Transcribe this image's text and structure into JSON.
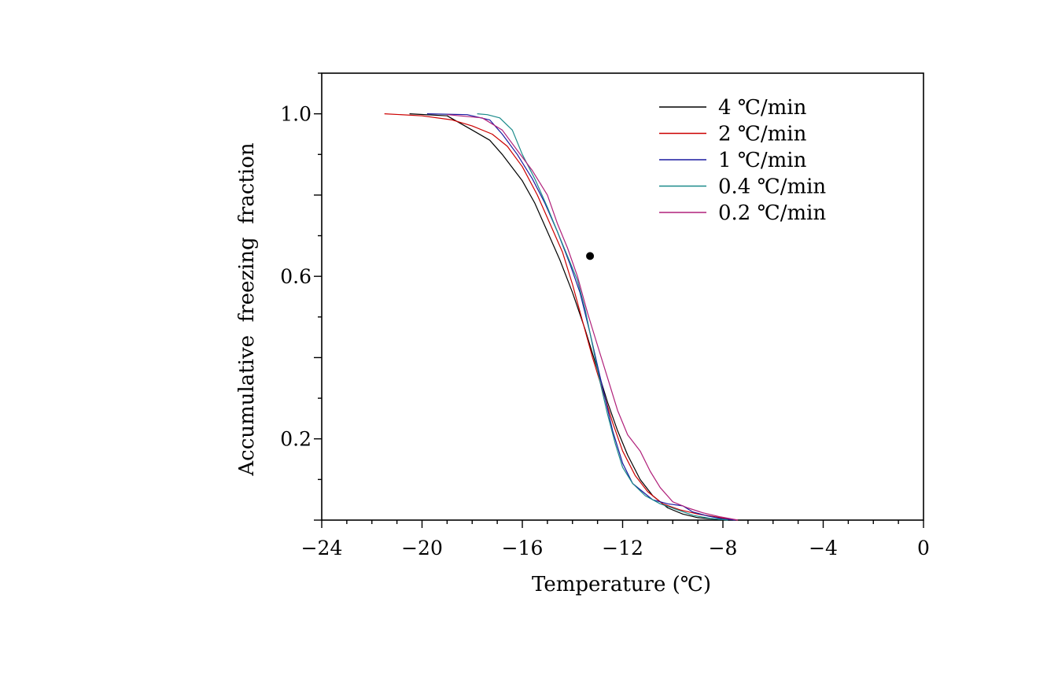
{
  "chart_data": {
    "type": "line",
    "title": "",
    "xlabel": "Temperature (℃)",
    "ylabel": "Accumulative  freezing  fraction",
    "xlim": [
      -24,
      0
    ],
    "ylim": [
      0,
      1.1
    ],
    "xticks": [
      -24,
      -20,
      -16,
      -12,
      -8,
      -4,
      0
    ],
    "xtick_labels": [
      "−24",
      "−20",
      "−16",
      "−12",
      "−8",
      "−4",
      "0"
    ],
    "yticks": [
      0.2,
      0.6,
      1.0
    ],
    "ytick_labels": [
      "0.2",
      "0.6",
      "1.0"
    ],
    "grid": false,
    "legend_position": "top-right",
    "annotation_point": {
      "x": -13.3,
      "y": 0.65
    },
    "series": [
      {
        "name": "4  ℃/min",
        "color": "#000000",
        "points": [
          [
            -20.5,
            1.0
          ],
          [
            -19.0,
            0.995
          ],
          [
            -18.0,
            0.96
          ],
          [
            -17.3,
            0.935
          ],
          [
            -16.8,
            0.9
          ],
          [
            -16.0,
            0.835
          ],
          [
            -15.5,
            0.78
          ],
          [
            -15.0,
            0.71
          ],
          [
            -14.5,
            0.64
          ],
          [
            -14.0,
            0.56
          ],
          [
            -13.5,
            0.47
          ],
          [
            -13.0,
            0.37
          ],
          [
            -12.6,
            0.29
          ],
          [
            -12.2,
            0.22
          ],
          [
            -11.8,
            0.16
          ],
          [
            -11.3,
            0.1
          ],
          [
            -10.8,
            0.06
          ],
          [
            -10.2,
            0.03
          ],
          [
            -9.6,
            0.015
          ],
          [
            -9.0,
            0.006
          ],
          [
            -8.2,
            0.002
          ],
          [
            -7.6,
            0.0
          ]
        ]
      },
      {
        "name": "2  ℃/min",
        "color": "#cc0000",
        "points": [
          [
            -21.5,
            1.0
          ],
          [
            -20.0,
            0.995
          ],
          [
            -18.8,
            0.985
          ],
          [
            -18.0,
            0.97
          ],
          [
            -17.2,
            0.95
          ],
          [
            -16.6,
            0.92
          ],
          [
            -16.0,
            0.87
          ],
          [
            -15.4,
            0.8
          ],
          [
            -14.9,
            0.73
          ],
          [
            -14.4,
            0.66
          ],
          [
            -14.0,
            0.58
          ],
          [
            -13.6,
            0.49
          ],
          [
            -13.2,
            0.4
          ],
          [
            -12.8,
            0.32
          ],
          [
            -12.4,
            0.24
          ],
          [
            -12.0,
            0.17
          ],
          [
            -11.5,
            0.11
          ],
          [
            -11.0,
            0.07
          ],
          [
            -10.4,
            0.04
          ],
          [
            -9.7,
            0.025
          ],
          [
            -9.0,
            0.015
          ],
          [
            -8.2,
            0.007
          ],
          [
            -7.4,
            0.0
          ]
        ]
      },
      {
        "name": "1  ℃/min",
        "color": "#1a1aa0",
        "points": [
          [
            -19.8,
            1.0
          ],
          [
            -18.2,
            0.998
          ],
          [
            -17.3,
            0.985
          ],
          [
            -16.8,
            0.95
          ],
          [
            -16.2,
            0.9
          ],
          [
            -15.6,
            0.84
          ],
          [
            -15.1,
            0.78
          ],
          [
            -14.6,
            0.71
          ],
          [
            -14.1,
            0.63
          ],
          [
            -13.7,
            0.56
          ],
          [
            -13.3,
            0.46
          ],
          [
            -13.0,
            0.38
          ],
          [
            -12.7,
            0.3
          ],
          [
            -12.4,
            0.22
          ],
          [
            -12.0,
            0.14
          ],
          [
            -11.6,
            0.09
          ],
          [
            -11.2,
            0.07
          ],
          [
            -10.8,
            0.05
          ],
          [
            -10.2,
            0.04
          ],
          [
            -9.6,
            0.035
          ],
          [
            -9.2,
            0.02
          ],
          [
            -8.6,
            0.01
          ],
          [
            -8.0,
            0.003
          ],
          [
            -7.5,
            0.0
          ]
        ]
      },
      {
        "name": "0.4  ℃/min",
        "color": "#1a8a8a",
        "points": [
          [
            -17.8,
            1.0
          ],
          [
            -17.4,
            0.998
          ],
          [
            -16.9,
            0.99
          ],
          [
            -16.4,
            0.96
          ],
          [
            -16.0,
            0.9
          ],
          [
            -15.5,
            0.84
          ],
          [
            -15.0,
            0.77
          ],
          [
            -14.6,
            0.71
          ],
          [
            -14.2,
            0.65
          ],
          [
            -13.8,
            0.59
          ],
          [
            -13.5,
            0.52
          ],
          [
            -13.2,
            0.43
          ],
          [
            -12.9,
            0.34
          ],
          [
            -12.6,
            0.26
          ],
          [
            -12.3,
            0.19
          ],
          [
            -12.0,
            0.13
          ],
          [
            -11.6,
            0.09
          ],
          [
            -11.1,
            0.06
          ],
          [
            -10.5,
            0.04
          ],
          [
            -9.8,
            0.025
          ],
          [
            -9.2,
            0.012
          ],
          [
            -8.5,
            0.004
          ],
          [
            -7.8,
            0.0
          ]
        ]
      },
      {
        "name": "0.2  ℃/min",
        "color": "#b0207a",
        "points": [
          [
            -19.0,
            0.998
          ],
          [
            -17.6,
            0.99
          ],
          [
            -16.8,
            0.96
          ],
          [
            -16.2,
            0.91
          ],
          [
            -15.6,
            0.86
          ],
          [
            -15.0,
            0.8
          ],
          [
            -14.6,
            0.73
          ],
          [
            -14.2,
            0.67
          ],
          [
            -13.8,
            0.6
          ],
          [
            -13.4,
            0.51
          ],
          [
            -13.0,
            0.43
          ],
          [
            -12.6,
            0.35
          ],
          [
            -12.2,
            0.27
          ],
          [
            -11.8,
            0.21
          ],
          [
            -11.3,
            0.17
          ],
          [
            -10.9,
            0.12
          ],
          [
            -10.5,
            0.08
          ],
          [
            -10.0,
            0.045
          ],
          [
            -9.4,
            0.03
          ],
          [
            -8.8,
            0.018
          ],
          [
            -8.1,
            0.008
          ],
          [
            -7.4,
            0.0
          ]
        ]
      }
    ]
  }
}
